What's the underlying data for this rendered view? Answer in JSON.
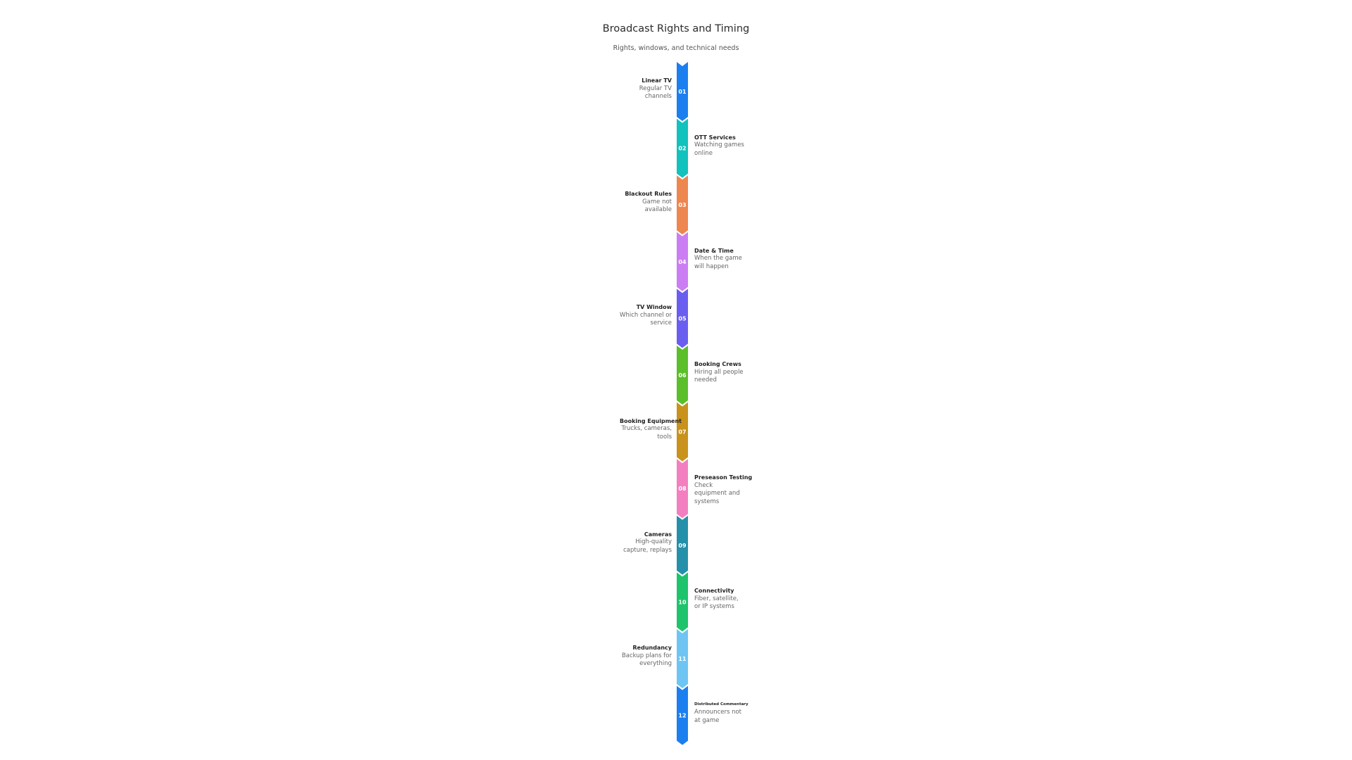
{
  "header": {
    "title": "Broadcast Rights and Timing",
    "subtitle": "Rights, windows, and technical needs"
  },
  "steps": [
    {
      "number": "01",
      "title": "Linear TV",
      "description": "Regular TV channels",
      "side": "left",
      "color": "#1b7ff0"
    },
    {
      "number": "02",
      "title": "OTT Services",
      "description": "Watching games online",
      "side": "right",
      "color": "#12c2bc"
    },
    {
      "number": "03",
      "title": "Blackout Rules",
      "description": "Game not available",
      "side": "left",
      "color": "#ee8650"
    },
    {
      "number": "04",
      "title": "Date & Time",
      "description": "When the game will happen",
      "side": "right",
      "color": "#cb7ef3"
    },
    {
      "number": "05",
      "title": "TV Window",
      "description": "Which channel or service",
      "side": "left",
      "color": "#6a5ef0"
    },
    {
      "number": "06",
      "title": "Booking Crews",
      "description": "Hiring all people needed",
      "side": "right",
      "color": "#5bbf2a"
    },
    {
      "number": "07",
      "title": "Booking Equipment",
      "description": "Trucks, cameras, tools",
      "side": "left",
      "color": "#c8921c"
    },
    {
      "number": "08",
      "title": "Preseason Testing",
      "description": "Check equipment and systems",
      "side": "right",
      "color": "#f37fc0"
    },
    {
      "number": "09",
      "title": "Cameras",
      "description": "High-quality capture, replays",
      "side": "left",
      "color": "#2590aa"
    },
    {
      "number": "10",
      "title": "Connectivity",
      "description": "Fiber, satellite, or IP systems",
      "side": "right",
      "color": "#1ec46b"
    },
    {
      "number": "11",
      "title": "Redundancy",
      "description": "Backup plans for everything",
      "side": "left",
      "color": "#6ec5f3"
    },
    {
      "number": "12",
      "title": "Distributed Commentary",
      "description": "Announcers not at game",
      "side": "right",
      "color": "#1b7ff0"
    }
  ]
}
